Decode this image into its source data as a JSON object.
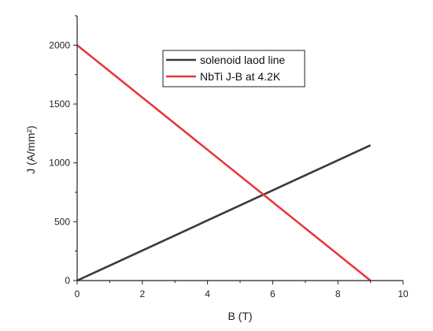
{
  "chart_data": {
    "type": "line",
    "title": "",
    "xlabel": "B (T)",
    "ylabel": "J (A/mm²)",
    "xlim": [
      0,
      10
    ],
    "ylim": [
      0,
      2250
    ],
    "x_ticks": [
      0,
      2,
      4,
      6,
      8,
      10
    ],
    "y_ticks": [
      0,
      500,
      1000,
      1500,
      2000
    ],
    "grid": false,
    "legend_position": "top-center",
    "series": [
      {
        "name": "solenoid laod line",
        "color": "#3a3a3a",
        "x": [
          0,
          9
        ],
        "y": [
          0,
          1150
        ]
      },
      {
        "name": "NbTi J-B at 4.2K",
        "color": "#e8383a",
        "x": [
          0,
          9
        ],
        "y": [
          2000,
          0
        ]
      }
    ]
  }
}
